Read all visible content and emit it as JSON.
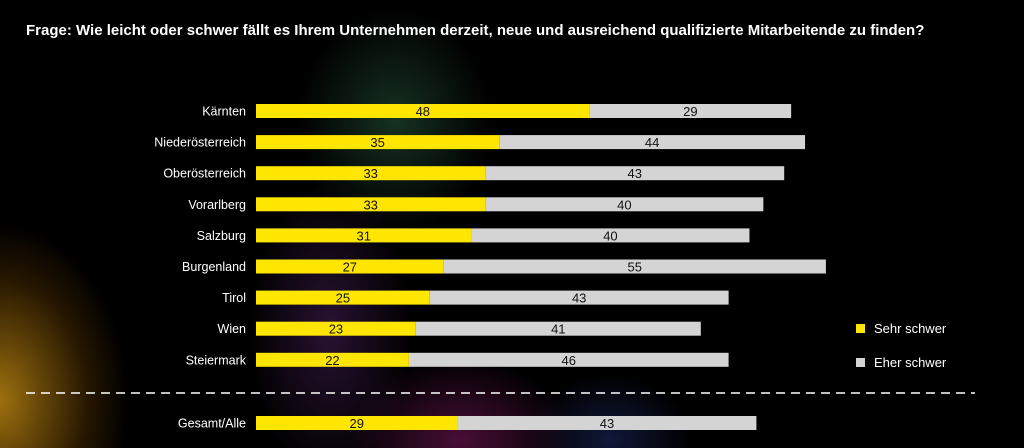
{
  "title": "Frage: Wie leicht oder schwer fällt es Ihrem Unternehmen derzeit, neue und ausreichend qualifizierte Mitarbeitende zu finden?",
  "colors": {
    "sehr_schwer": "#ffe600",
    "eher_schwer": "#d4d4d4",
    "divider": "#ffffff"
  },
  "legend": [
    {
      "label": "Sehr schwer",
      "color": "#ffe600"
    },
    {
      "label": "Eher schwer",
      "color": "#d4d4d4"
    }
  ],
  "chart_data": {
    "type": "bar",
    "orientation": "horizontal",
    "stacked": true,
    "categories": [
      "Kärnten",
      "Niederösterreich",
      "Oberösterreich",
      "Vorarlberg",
      "Salzburg",
      "Burgenland",
      "Tirol",
      "Wien",
      "Steiermark"
    ],
    "series": [
      {
        "name": "Sehr schwer",
        "values": [
          48,
          35,
          33,
          33,
          31,
          27,
          25,
          23,
          22
        ]
      },
      {
        "name": "Eher schwer",
        "values": [
          29,
          44,
          43,
          40,
          40,
          55,
          43,
          41,
          46
        ]
      }
    ],
    "total": {
      "category": "Gesamt/Alle",
      "values": [
        29,
        43
      ]
    },
    "legend_position": "right",
    "grid": false,
    "xlim": [
      0,
      100
    ]
  }
}
